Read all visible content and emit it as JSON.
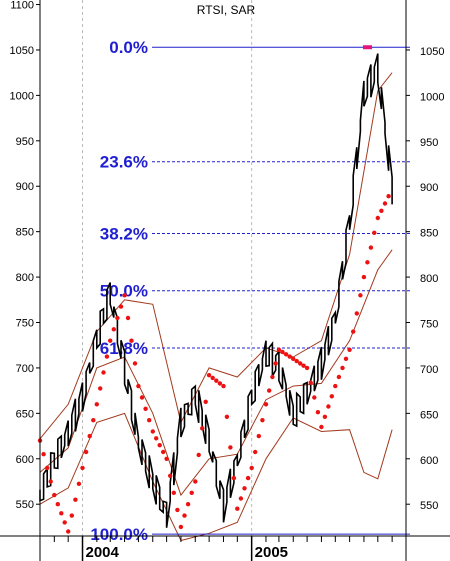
{
  "chart_data": {
    "type": "line",
    "title": "RTSI, SAR",
    "ylim": [
      515,
      1105
    ],
    "y_ticks_left": [
      550,
      600,
      650,
      700,
      750,
      800,
      850,
      900,
      950,
      1000,
      1050,
      1100
    ],
    "y_ticks_right": [
      550,
      600,
      650,
      700,
      750,
      800,
      850,
      900,
      950,
      1000,
      1050
    ],
    "x_labels": [
      "2004",
      "2005"
    ],
    "grid": "dashed vertical lines at year boundaries",
    "fibonacci": {
      "high": 1053,
      "low": 517,
      "levels": [
        {
          "label": "0.0%",
          "value": 1053
        },
        {
          "label": "23.6%",
          "value": 927
        },
        {
          "label": "38.2%",
          "value": 848
        },
        {
          "label": "50.0%",
          "value": 785
        },
        {
          "label": "61.8%",
          "value": 722
        },
        {
          "label": "100.0%",
          "value": 517
        }
      ]
    },
    "series": [
      {
        "kind": "price",
        "x": [
          "2003-10-01",
          "2003-11-01",
          "2003-12-01",
          "2004-01-01",
          "2004-02-01",
          "2004-03-01",
          "2004-04-01",
          "2004-05-01",
          "2004-06-01",
          "2004-07-01",
          "2004-08-01",
          "2004-09-01",
          "2004-10-01",
          "2004-11-01",
          "2004-12-01",
          "2005-01-01",
          "2005-02-01",
          "2005-03-01",
          "2005-04-01",
          "2005-05-01",
          "2005-06-01",
          "2005-07-01",
          "2005-08-01",
          "2005-09-01",
          "2005-10-01",
          "2005-11-01"
        ],
        "values": [
          560,
          598,
          628,
          668,
          732,
          782,
          700,
          618,
          575,
          538,
          640,
          670,
          620,
          548,
          598,
          668,
          716,
          702,
          648,
          672,
          705,
          755,
          860,
          1002,
          1030,
          898
        ]
      },
      {
        "kind": "sar",
        "x": [
          "2003-10-01",
          "2003-11-01",
          "2003-12-01",
          "2004-01-01",
          "2004-02-01",
          "2004-03-01",
          "2004-04-01",
          "2004-05-01",
          "2004-06-01",
          "2004-07-01",
          "2004-08-01",
          "2004-09-01",
          "2004-10-01",
          "2004-11-01",
          "2004-12-01",
          "2005-01-01",
          "2005-02-01",
          "2005-03-01",
          "2005-04-01",
          "2005-05-01",
          "2005-06-01",
          "2005-07-01",
          "2005-08-01",
          "2005-09-01",
          "2005-10-01",
          "2005-11-01"
        ],
        "values": [
          620,
          560,
          520,
          590,
          660,
          730,
          780,
          680,
          630,
          600,
          525,
          575,
          692,
          680,
          545,
          590,
          660,
          720,
          710,
          700,
          635,
          680,
          720,
          800,
          865,
          897
        ]
      },
      {
        "kind": "band_upper",
        "x": [
          "2003-10-01",
          "2003-12-01",
          "2004-02-01",
          "2004-04-01",
          "2004-06-01",
          "2004-08-01",
          "2004-10-01",
          "2004-12-01",
          "2005-02-01",
          "2005-04-01",
          "2005-06-01",
          "2005-08-01",
          "2005-10-01",
          "2005-11-01"
        ],
        "values": [
          622,
          660,
          740,
          775,
          770,
          640,
          700,
          690,
          722,
          712,
          730,
          825,
          1005,
          1025
        ]
      },
      {
        "kind": "band_middle",
        "x": [
          "2003-10-01",
          "2003-12-01",
          "2004-02-01",
          "2004-04-01",
          "2004-06-01",
          "2004-08-01",
          "2004-10-01",
          "2004-12-01",
          "2005-02-01",
          "2005-04-01",
          "2005-06-01",
          "2005-08-01",
          "2005-10-01",
          "2005-11-01"
        ],
        "values": [
          585,
          612,
          700,
          712,
          650,
          560,
          600,
          605,
          665,
          680,
          683,
          730,
          808,
          830
        ]
      },
      {
        "kind": "band_lower",
        "x": [
          "2003-10-01",
          "2003-12-01",
          "2004-02-01",
          "2004-04-01",
          "2004-06-01",
          "2004-08-01",
          "2004-10-01",
          "2004-12-01",
          "2005-02-01",
          "2005-04-01",
          "2005-06-01",
          "2005-08-01",
          "2005-09-01",
          "2005-10-01",
          "2005-11-01"
        ],
        "values": [
          550,
          568,
          640,
          650,
          575,
          510,
          518,
          530,
          600,
          645,
          630,
          632,
          585,
          578,
          632
        ]
      }
    ],
    "colors": {
      "price": "#000000",
      "sar": "#ee1111",
      "band": "#a23a1e",
      "fib_line": "#2020cc",
      "fib_label": "#1f1fd1",
      "marker": "#e4157a"
    }
  }
}
